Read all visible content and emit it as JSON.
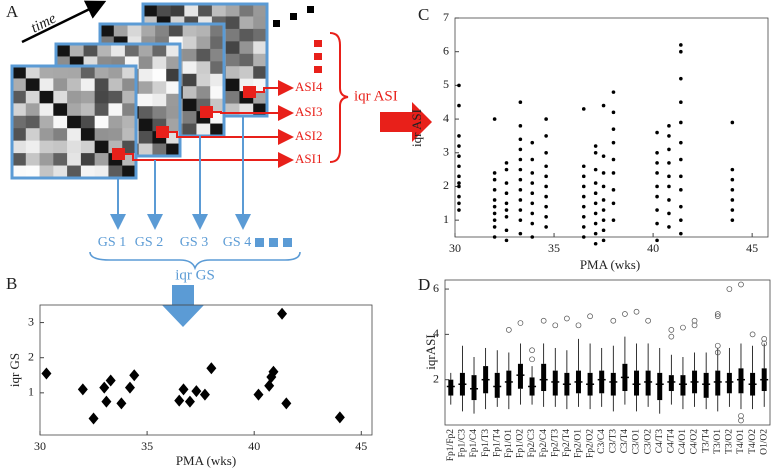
{
  "diagram": {
    "label": "A",
    "time": "time",
    "asi": [
      "ASI4",
      "ASI3",
      "ASI2",
      "ASI1"
    ],
    "iqr_asi": "iqr ASI",
    "gs": [
      "GS 1",
      "GS 2",
      "GS 3",
      "GS 4"
    ],
    "iqr_gs": "iqr GS"
  },
  "chart_data": [
    {
      "type": "scatter",
      "panel_label": "B",
      "x_label": "PMA (wks)",
      "y_label": "iqr GS",
      "marker": "diamond",
      "color": "#000000",
      "x": [
        30.3,
        32,
        32.5,
        33,
        33.1,
        33.3,
        33.8,
        34.2,
        34.4,
        36.5,
        36.7,
        37,
        37.3,
        37.7,
        38,
        40.2,
        40.7,
        40.8,
        40.9,
        41.3,
        41.5,
        44
      ],
      "y": [
        1.55,
        1.1,
        0.27,
        1.15,
        0.75,
        1.35,
        0.7,
        1.15,
        1.5,
        0.78,
        1.1,
        0.75,
        1.05,
        0.95,
        1.7,
        0.95,
        1.2,
        1.45,
        1.6,
        3.25,
        0.7,
        0.3
      ],
      "xlim": [
        30,
        45.5
      ],
      "ylim": [
        -0.2,
        3.5
      ],
      "xticks": [
        30,
        35,
        40,
        45
      ],
      "yticks": [
        1,
        2,
        3
      ]
    },
    {
      "type": "scatter",
      "panel_label": "C",
      "x_label": "PMA (wks)",
      "y_label": "iqr ASI",
      "marker": "dot",
      "color": "#000000",
      "x": [
        30.2,
        30.2,
        30.2,
        30.2,
        30.2,
        30.2,
        30.2,
        30.2,
        30.2,
        30.2,
        30.2,
        30.2,
        32,
        32,
        32,
        32,
        32,
        32,
        32,
        32,
        32,
        32,
        32.6,
        32.6,
        32.6,
        32.6,
        32.6,
        32.6,
        32.6,
        32.6,
        32.6,
        33.3,
        33.3,
        33.3,
        33.3,
        33.3,
        33.3,
        33.3,
        33.3,
        33.3,
        33.3,
        33.3,
        33.3,
        33.9,
        33.9,
        33.9,
        33.9,
        33.9,
        33.9,
        33.9,
        33.9,
        33.9,
        34.6,
        34.6,
        34.6,
        34.6,
        34.6,
        34.6,
        34.6,
        34.6,
        34.6,
        34.6,
        36.5,
        36.5,
        36.5,
        36.5,
        36.5,
        36.5,
        36.5,
        36.5,
        36.5,
        37.1,
        37.1,
        37.1,
        37.1,
        37.1,
        37.1,
        37.1,
        37.1,
        37.1,
        37.1,
        37.5,
        37.5,
        37.5,
        37.5,
        37.5,
        37.5,
        37.5,
        37.5,
        37.5,
        38,
        38,
        38,
        38,
        38,
        38,
        38,
        38,
        38,
        40.2,
        40.2,
        40.2,
        40.2,
        40.2,
        40.2,
        40.2,
        40.2,
        40.2,
        40.8,
        40.8,
        40.8,
        40.8,
        40.8,
        40.8,
        40.8,
        40.8,
        40.8,
        41.4,
        41.4,
        41.4,
        41.4,
        41.4,
        41.4,
        41.4,
        41.4,
        41.4,
        41.4,
        41.4,
        41.4,
        44,
        44,
        44,
        44,
        44,
        44,
        44
      ],
      "y": [
        1.3,
        1.7,
        2.0,
        2.3,
        2.6,
        2.9,
        3.2,
        3.5,
        4.4,
        5.0,
        1.5,
        2.1,
        0.5,
        0.8,
        1.0,
        1.2,
        1.4,
        1.6,
        1.9,
        2.2,
        2.4,
        4.0,
        0.4,
        0.7,
        1.1,
        1.3,
        1.5,
        1.8,
        2.1,
        2.5,
        2.7,
        0.6,
        1.0,
        1.3,
        1.6,
        1.9,
        2.2,
        2.5,
        2.8,
        3.1,
        3.4,
        3.8,
        4.5,
        0.5,
        0.9,
        1.2,
        1.5,
        1.8,
        2.1,
        2.4,
        2.8,
        3.3,
        0.8,
        1.1,
        1.4,
        1.7,
        2.0,
        2.3,
        2.6,
        3.0,
        3.5,
        4.0,
        0.5,
        0.8,
        1.1,
        1.4,
        1.7,
        2.0,
        2.3,
        2.6,
        4.3,
        0.3,
        0.6,
        0.9,
        1.2,
        1.5,
        1.8,
        2.1,
        2.5,
        3.0,
        3.2,
        0.4,
        0.7,
        1.0,
        1.3,
        1.6,
        2.0,
        2.4,
        2.9,
        4.4,
        1.0,
        1.5,
        1.9,
        2.4,
        2.8,
        3.3,
        3.7,
        4.2,
        4.8,
        0.4,
        0.9,
        1.3,
        1.7,
        2.0,
        2.4,
        2.7,
        3.0,
        3.6,
        0.8,
        1.2,
        1.6,
        2.0,
        2.3,
        2.7,
        3.1,
        3.5,
        3.8,
        0.6,
        1.0,
        1.4,
        1.9,
        2.3,
        2.8,
        3.3,
        3.9,
        4.5,
        5.2,
        6.0,
        6.2,
        1.0,
        1.3,
        1.6,
        1.9,
        2.2,
        2.5,
        3.9
      ],
      "xlim": [
        30,
        45.8
      ],
      "ylim": [
        0.5,
        7
      ],
      "xticks": [
        30,
        35,
        40,
        45
      ],
      "yticks": [
        1,
        2,
        3,
        4,
        5,
        6,
        7
      ]
    },
    {
      "type": "box",
      "panel_label": "D",
      "y_label": "iqrASI",
      "color": "#000000",
      "categories": [
        "Fp1/Fp2",
        "Fp1/C3",
        "Fp1/C4",
        "Fp1/T3",
        "Fp1/T4",
        "Fp1/O1",
        "Fp1/O2",
        "Fp2/C3",
        "Fp2/C4",
        "Fp2/T3",
        "Fp2/T4",
        "Fp2/O1",
        "Fp2/O2",
        "C3/C4",
        "C3/T3",
        "C3/T4",
        "C3/O1",
        "C3/O2",
        "C4/T3",
        "C4/T4",
        "C4/O1",
        "C4/O2",
        "T3/T4",
        "T3/O1",
        "T3/O2",
        "T4/O1",
        "T4/O2",
        "O1/O2"
      ],
      "min": [
        0.9,
        0.6,
        0.5,
        0.7,
        0.8,
        0.7,
        0.9,
        0.9,
        0.8,
        0.8,
        0.7,
        0.8,
        0.7,
        0.8,
        0.6,
        0.9,
        0.6,
        0.8,
        0.5,
        0.9,
        0.7,
        0.8,
        0.7,
        0.6,
        0.8,
        0.7,
        0.7,
        0.8
      ],
      "q1": [
        1.3,
        1.3,
        1.1,
        1.4,
        1.2,
        1.3,
        1.6,
        1.3,
        1.5,
        1.3,
        1.3,
        1.4,
        1.3,
        1.4,
        1.3,
        1.5,
        1.3,
        1.3,
        1.1,
        1.5,
        1.3,
        1.4,
        1.2,
        1.3,
        1.4,
        1.4,
        1.3,
        1.5
      ],
      "median": [
        1.7,
        1.8,
        1.6,
        2.0,
        1.7,
        1.9,
        2.2,
        1.7,
        2.0,
        1.9,
        1.8,
        1.9,
        1.8,
        2.0,
        1.9,
        2.1,
        1.8,
        1.9,
        1.8,
        1.9,
        1.8,
        1.9,
        1.8,
        1.9,
        1.9,
        2.0,
        1.8,
        2.0
      ],
      "q3": [
        2.0,
        2.3,
        2.2,
        2.6,
        2.3,
        2.4,
        2.7,
        2.1,
        2.7,
        2.4,
        2.3,
        2.4,
        2.3,
        2.4,
        2.3,
        2.7,
        2.4,
        2.4,
        2.3,
        2.2,
        2.2,
        2.4,
        2.3,
        2.4,
        2.3,
        2.5,
        2.3,
        2.5
      ],
      "max": [
        2.3,
        3.5,
        3.0,
        3.4,
        3.3,
        3.2,
        3.6,
        2.6,
        3.6,
        3.4,
        3.3,
        3.8,
        3.6,
        3.4,
        3.5,
        3.9,
        3.6,
        3.6,
        3.4,
        3.1,
        3.0,
        3.2,
        3.2,
        3.4,
        3.4,
        3.6,
        3.5,
        3.6
      ],
      "outliers": [
        [],
        [],
        [],
        [],
        [],
        [
          4.2
        ],
        [
          4.5
        ],
        [
          3.3,
          2.9
        ],
        [
          4.6
        ],
        [
          4.4
        ],
        [
          4.7
        ],
        [
          4.4
        ],
        [
          4.8
        ],
        [],
        [
          4.6
        ],
        [
          4.9
        ],
        [
          5.0
        ],
        [
          4.6
        ],
        [],
        [
          4.2,
          3.9
        ],
        [
          4.3
        ],
        [
          4.6,
          4.4
        ],
        [],
        [
          4.9,
          4.8,
          3.5,
          3.2
        ],
        [
          6.0
        ],
        [
          6.2,
          0.4,
          0.2
        ],
        [
          4.0
        ],
        [
          3.8,
          3.6
        ]
      ],
      "ylim": [
        0,
        6.4
      ],
      "yticks": [
        2,
        4,
        6
      ]
    }
  ]
}
